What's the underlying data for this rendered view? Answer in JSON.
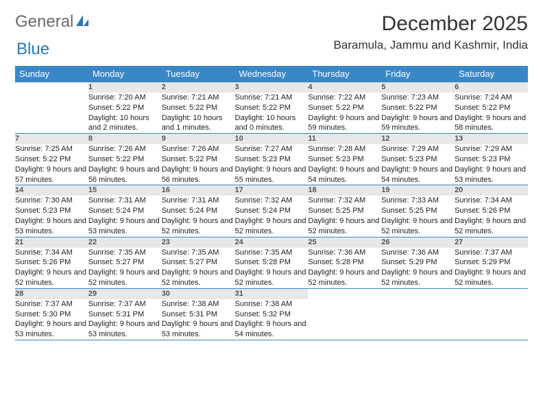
{
  "logo": {
    "text1": "General",
    "text2": "Blue"
  },
  "title": "December 2025",
  "location": "Baramula, Jammu and Kashmir, India",
  "colors": {
    "header_bg": "#3a87c8",
    "daynum_bg": "#e8e8e8",
    "accent": "#2f76b9",
    "text": "#222222"
  },
  "day_headers": [
    "Sunday",
    "Monday",
    "Tuesday",
    "Wednesday",
    "Thursday",
    "Friday",
    "Saturday"
  ],
  "weeks": [
    [
      null,
      {
        "n": "1",
        "sr": "7:20 AM",
        "ss": "5:22 PM",
        "dl": "10 hours and 2 minutes."
      },
      {
        "n": "2",
        "sr": "7:21 AM",
        "ss": "5:22 PM",
        "dl": "10 hours and 1 minutes."
      },
      {
        "n": "3",
        "sr": "7:21 AM",
        "ss": "5:22 PM",
        "dl": "10 hours and 0 minutes."
      },
      {
        "n": "4",
        "sr": "7:22 AM",
        "ss": "5:22 PM",
        "dl": "9 hours and 59 minutes."
      },
      {
        "n": "5",
        "sr": "7:23 AM",
        "ss": "5:22 PM",
        "dl": "9 hours and 59 minutes."
      },
      {
        "n": "6",
        "sr": "7:24 AM",
        "ss": "5:22 PM",
        "dl": "9 hours and 58 minutes."
      }
    ],
    [
      {
        "n": "7",
        "sr": "7:25 AM",
        "ss": "5:22 PM",
        "dl": "9 hours and 57 minutes."
      },
      {
        "n": "8",
        "sr": "7:26 AM",
        "ss": "5:22 PM",
        "dl": "9 hours and 56 minutes."
      },
      {
        "n": "9",
        "sr": "7:26 AM",
        "ss": "5:22 PM",
        "dl": "9 hours and 56 minutes."
      },
      {
        "n": "10",
        "sr": "7:27 AM",
        "ss": "5:23 PM",
        "dl": "9 hours and 55 minutes."
      },
      {
        "n": "11",
        "sr": "7:28 AM",
        "ss": "5:23 PM",
        "dl": "9 hours and 54 minutes."
      },
      {
        "n": "12",
        "sr": "7:29 AM",
        "ss": "5:23 PM",
        "dl": "9 hours and 54 minutes."
      },
      {
        "n": "13",
        "sr": "7:29 AM",
        "ss": "5:23 PM",
        "dl": "9 hours and 53 minutes."
      }
    ],
    [
      {
        "n": "14",
        "sr": "7:30 AM",
        "ss": "5:23 PM",
        "dl": "9 hours and 53 minutes."
      },
      {
        "n": "15",
        "sr": "7:31 AM",
        "ss": "5:24 PM",
        "dl": "9 hours and 53 minutes."
      },
      {
        "n": "16",
        "sr": "7:31 AM",
        "ss": "5:24 PM",
        "dl": "9 hours and 52 minutes."
      },
      {
        "n": "17",
        "sr": "7:32 AM",
        "ss": "5:24 PM",
        "dl": "9 hours and 52 minutes."
      },
      {
        "n": "18",
        "sr": "7:32 AM",
        "ss": "5:25 PM",
        "dl": "9 hours and 52 minutes."
      },
      {
        "n": "19",
        "sr": "7:33 AM",
        "ss": "5:25 PM",
        "dl": "9 hours and 52 minutes."
      },
      {
        "n": "20",
        "sr": "7:34 AM",
        "ss": "5:26 PM",
        "dl": "9 hours and 52 minutes."
      }
    ],
    [
      {
        "n": "21",
        "sr": "7:34 AM",
        "ss": "5:26 PM",
        "dl": "9 hours and 52 minutes."
      },
      {
        "n": "22",
        "sr": "7:35 AM",
        "ss": "5:27 PM",
        "dl": "9 hours and 52 minutes."
      },
      {
        "n": "23",
        "sr": "7:35 AM",
        "ss": "5:27 PM",
        "dl": "9 hours and 52 minutes."
      },
      {
        "n": "24",
        "sr": "7:35 AM",
        "ss": "5:28 PM",
        "dl": "9 hours and 52 minutes."
      },
      {
        "n": "25",
        "sr": "7:36 AM",
        "ss": "5:28 PM",
        "dl": "9 hours and 52 minutes."
      },
      {
        "n": "26",
        "sr": "7:36 AM",
        "ss": "5:29 PM",
        "dl": "9 hours and 52 minutes."
      },
      {
        "n": "27",
        "sr": "7:37 AM",
        "ss": "5:29 PM",
        "dl": "9 hours and 52 minutes."
      }
    ],
    [
      {
        "n": "28",
        "sr": "7:37 AM",
        "ss": "5:30 PM",
        "dl": "9 hours and 53 minutes."
      },
      {
        "n": "29",
        "sr": "7:37 AM",
        "ss": "5:31 PM",
        "dl": "9 hours and 53 minutes."
      },
      {
        "n": "30",
        "sr": "7:38 AM",
        "ss": "5:31 PM",
        "dl": "9 hours and 53 minutes."
      },
      {
        "n": "31",
        "sr": "7:38 AM",
        "ss": "5:32 PM",
        "dl": "9 hours and 54 minutes."
      },
      null,
      null,
      null
    ]
  ],
  "labels": {
    "sunrise": "Sunrise:",
    "sunset": "Sunset:",
    "daylight": "Daylight:"
  }
}
